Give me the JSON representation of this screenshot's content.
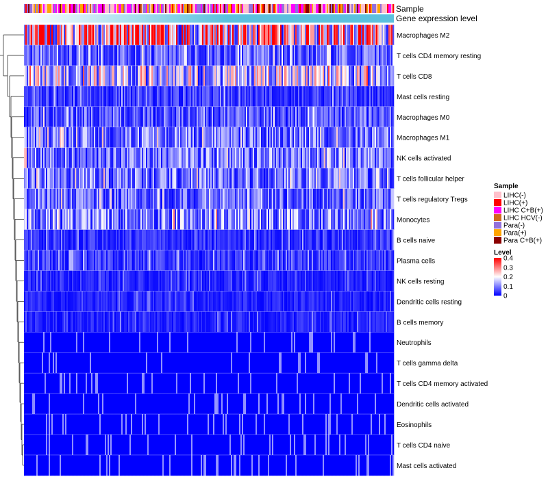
{
  "chart_data": {
    "type": "heatmap",
    "title": "",
    "annotation_rows": [
      "Sample",
      "Gene expression level"
    ],
    "row_labels": [
      "Macrophages M2",
      "T cells CD4 memory resting",
      "T cells CD8",
      "Mast cells resting",
      "Macrophages M0",
      "Macrophages M1",
      "NK cells activated",
      "T cells follicular helper",
      "T cells regulatory  Tregs",
      "Monocytes",
      "B cells naive",
      "Plasma cells",
      "NK cells resting",
      "Dendritic cells resting",
      "B cells memory",
      "Neutrophils",
      "T cells gamma delta",
      "T cells CD4 memory activated",
      "Dendritic cells activated",
      "Eosinophils",
      "T cells CD4 naive",
      "Mast cells activated"
    ],
    "row_mean_levels": [
      0.27,
      0.08,
      0.17,
      0.05,
      0.08,
      0.1,
      0.1,
      0.1,
      0.09,
      0.12,
      0.04,
      0.05,
      0.03,
      0.03,
      0.03,
      0.01,
      0.01,
      0.01,
      0.01,
      0.01,
      0.01,
      0.01
    ],
    "sample_groups": [
      {
        "name": "LIHC(-)",
        "color": "#ffc0cb"
      },
      {
        "name": "LIHC(+)",
        "color": "#ff0000"
      },
      {
        "name": "LIHC C+B(+)",
        "color": "#ff00ff"
      },
      {
        "name": "LIHC HCV(-)",
        "color": "#d2691e"
      },
      {
        "name": "Para(-)",
        "color": "#9370db"
      },
      {
        "name": "Para(+)",
        "color": "#ffa500"
      },
      {
        "name": "Para C+B(+)",
        "color": "#8b0000"
      }
    ],
    "legend_sample_title": "Sample",
    "legend_level_title": "Level",
    "level_range": [
      0,
      0.4
    ],
    "level_ticks": [
      "0.4",
      "0.3",
      "0.2",
      "0.1",
      "0"
    ],
    "color_scale": {
      "low": "#0000ff",
      "mid": "#ffffff",
      "high": "#ff0000"
    },
    "gene_expression_color": "#5bc0de",
    "n_samples": 270
  }
}
